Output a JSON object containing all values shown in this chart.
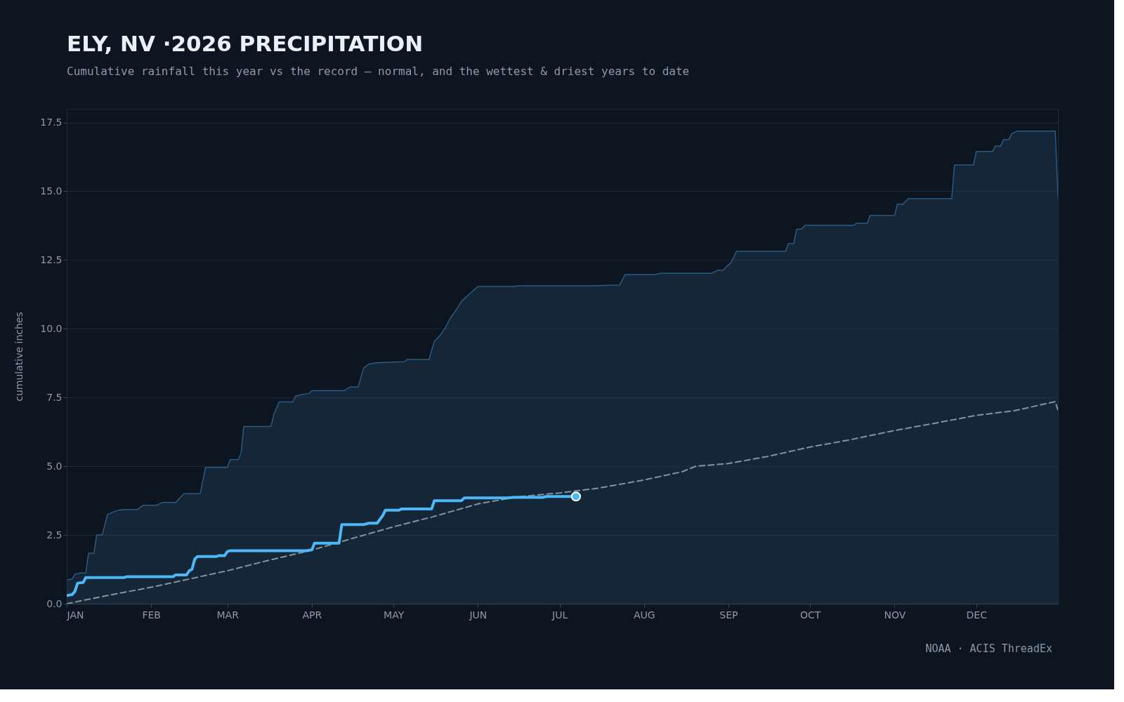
{
  "chart_data": {
    "type": "line",
    "title": "ELY, NV ·2026 PRECIPITATION",
    "subtitle": "Cumulative rainfall this year vs the record — normal, and the wettest & driest years to date",
    "ylabel": "cumulative inches",
    "annotations": [
      "NOAA · ACIS ThreadEx"
    ],
    "xlim": [
      "2026-01-01",
      "2026-12-31"
    ],
    "xticks": [
      {
        "value": "2026-01-01",
        "label": "JAN"
      },
      {
        "value": "2026-02-01",
        "label": "FEB"
      },
      {
        "value": "2026-03-01",
        "label": "MAR"
      },
      {
        "value": "2026-04-01",
        "label": "APR"
      },
      {
        "value": "2026-05-01",
        "label": "MAY"
      },
      {
        "value": "2026-06-01",
        "label": "JUN"
      },
      {
        "value": "2026-07-01",
        "label": "JUL"
      },
      {
        "value": "2026-08-01",
        "label": "AUG"
      },
      {
        "value": "2026-09-01",
        "label": "SEP"
      },
      {
        "value": "2026-10-01",
        "label": "OCT"
      },
      {
        "value": "2026-11-01",
        "label": "NOV"
      },
      {
        "value": "2026-12-01",
        "label": "DEC"
      }
    ],
    "ylim": [
      0,
      18
    ],
    "yticks": [
      {
        "value": 0,
        "label": "0.0"
      },
      2.5,
      {
        "value": 5,
        "label": "5.0"
      },
      7.5,
      {
        "value": 10,
        "label": "10.0"
      },
      12.5,
      {
        "value": 15,
        "label": "15.0"
      },
      17.5
    ],
    "grid": "y",
    "series": [
      {
        "type": "area",
        "color": "#2c5a80",
        "line_style": "solid",
        "x": [
          "2026-01-01",
          "2026-01-03",
          "2026-01-04",
          "2026-01-06",
          "2026-01-08",
          "2026-01-09",
          "2026-01-11",
          "2026-01-12",
          "2026-01-14",
          "2026-01-16",
          "2026-01-18",
          "2026-01-20",
          "2026-01-22",
          "2026-01-27",
          "2026-01-29",
          "2026-02-03",
          "2026-02-05",
          "2026-02-10",
          "2026-02-13",
          "2026-02-19",
          "2026-02-21",
          "2026-03-01",
          "2026-03-02",
          "2026-03-05",
          "2026-03-06",
          "2026-03-07",
          "2026-03-17",
          "2026-03-18",
          "2026-03-20",
          "2026-03-25",
          "2026-03-26",
          "2026-03-28",
          "2026-03-31",
          "2026-04-01",
          "2026-04-13",
          "2026-04-15",
          "2026-04-18",
          "2026-04-20",
          "2026-04-22",
          "2026-04-24",
          "2026-04-26",
          "2026-05-05",
          "2026-05-06",
          "2026-05-14",
          "2026-05-16",
          "2026-05-18",
          "2026-05-20",
          "2026-05-22",
          "2026-05-24",
          "2026-05-26",
          "2026-05-29",
          "2026-06-01",
          "2026-06-14",
          "2026-06-16",
          "2026-07-11",
          "2026-07-23",
          "2026-07-25",
          "2026-08-05",
          "2026-08-07",
          "2026-08-26",
          "2026-08-28",
          "2026-08-30",
          "2026-09-01",
          "2026-09-02",
          "2026-09-04",
          "2026-09-22",
          "2026-09-23",
          "2026-09-25",
          "2026-09-26",
          "2026-09-28",
          "2026-09-29",
          "2026-10-17",
          "2026-10-18",
          "2026-10-22",
          "2026-10-23",
          "2026-11-01",
          "2026-11-02",
          "2026-11-04",
          "2026-11-06",
          "2026-11-22",
          "2026-11-23",
          "2026-11-30",
          "2026-12-01",
          "2026-12-07",
          "2026-12-08",
          "2026-12-10",
          "2026-12-11",
          "2026-12-13",
          "2026-12-14",
          "2026-12-16",
          "2026-12-30",
          "2026-12-31"
        ],
        "values": [
          0.87,
          0.9,
          1.07,
          1.12,
          1.12,
          1.84,
          1.84,
          2.5,
          2.5,
          3.25,
          3.33,
          3.4,
          3.43,
          3.43,
          3.58,
          3.58,
          3.68,
          3.68,
          4.0,
          4.0,
          4.96,
          4.96,
          5.24,
          5.24,
          5.47,
          6.45,
          6.45,
          6.86,
          7.34,
          7.34,
          7.55,
          7.6,
          7.65,
          7.75,
          7.75,
          7.88,
          7.88,
          8.57,
          8.72,
          8.75,
          8.77,
          8.8,
          8.88,
          8.88,
          9.54,
          9.75,
          10.03,
          10.41,
          10.69,
          11.0,
          11.28,
          11.54,
          11.54,
          11.56,
          11.56,
          11.59,
          11.97,
          11.97,
          12.02,
          12.02,
          12.13,
          12.13,
          12.33,
          12.41,
          12.82,
          12.82,
          13.1,
          13.1,
          13.61,
          13.64,
          13.76,
          13.76,
          13.84,
          13.84,
          14.12,
          14.12,
          14.53,
          14.53,
          14.73,
          14.73,
          15.96,
          15.96,
          16.45,
          16.45,
          16.65,
          16.65,
          16.88,
          16.88,
          17.09,
          17.19,
          17.19,
          14.79
        ]
      },
      {
        "color": "#8593a0",
        "line_style": "dashed",
        "x": [
          "2026-01-01",
          "2026-01-15",
          "2026-02-01",
          "2026-02-15",
          "2026-03-01",
          "2026-03-15",
          "2026-04-01",
          "2026-04-15",
          "2026-05-01",
          "2026-05-15",
          "2026-06-01",
          "2026-06-15",
          "2026-07-01",
          "2026-07-15",
          "2026-08-01",
          "2026-08-15",
          "2026-08-20",
          "2026-09-01",
          "2026-09-15",
          "2026-10-01",
          "2026-10-15",
          "2026-11-01",
          "2026-11-15",
          "2026-12-01",
          "2026-12-15",
          "2026-12-30",
          "2026-12-31"
        ],
        "values": [
          0.0,
          0.28,
          0.6,
          0.9,
          1.2,
          1.55,
          1.95,
          2.35,
          2.8,
          3.15,
          3.63,
          3.88,
          4.03,
          4.2,
          4.5,
          4.8,
          5.0,
          5.1,
          5.35,
          5.7,
          5.95,
          6.3,
          6.55,
          6.85,
          7.02,
          7.35,
          7.05
        ]
      },
      {
        "color": "#4db8f5",
        "line_style": "solid",
        "x": [
          "2026-01-01",
          "2026-01-03",
          "2026-01-04",
          "2026-01-05",
          "2026-01-07",
          "2026-01-08",
          "2026-01-22",
          "2026-01-23",
          "2026-02-09",
          "2026-02-10",
          "2026-02-14",
          "2026-02-15",
          "2026-02-16",
          "2026-02-17",
          "2026-02-18",
          "2026-02-25",
          "2026-02-26",
          "2026-02-28",
          "2026-03-01",
          "2026-03-02",
          "2026-03-30",
          "2026-04-01",
          "2026-04-02",
          "2026-04-11",
          "2026-04-12",
          "2026-04-20",
          "2026-04-22",
          "2026-04-25",
          "2026-04-27",
          "2026-04-28",
          "2026-05-03",
          "2026-05-04",
          "2026-05-15",
          "2026-05-16",
          "2026-05-26",
          "2026-05-27",
          "2026-06-12",
          "2026-06-14",
          "2026-06-25",
          "2026-06-26",
          "2026-07-07"
        ],
        "values": [
          0.3,
          0.33,
          0.45,
          0.75,
          0.77,
          0.95,
          0.95,
          0.98,
          0.98,
          1.05,
          1.05,
          1.2,
          1.25,
          1.62,
          1.72,
          1.72,
          1.75,
          1.75,
          1.9,
          1.93,
          1.93,
          1.96,
          2.2,
          2.2,
          2.88,
          2.88,
          2.93,
          2.93,
          3.2,
          3.4,
          3.4,
          3.45,
          3.45,
          3.75,
          3.75,
          3.85,
          3.85,
          3.87,
          3.87,
          3.9,
          3.9
        ]
      },
      {
        "type": "scatter",
        "color": "#4db8f5",
        "marker": "circle",
        "x": [
          "2026-07-07"
        ],
        "values": [
          3.9
        ]
      }
    ]
  }
}
